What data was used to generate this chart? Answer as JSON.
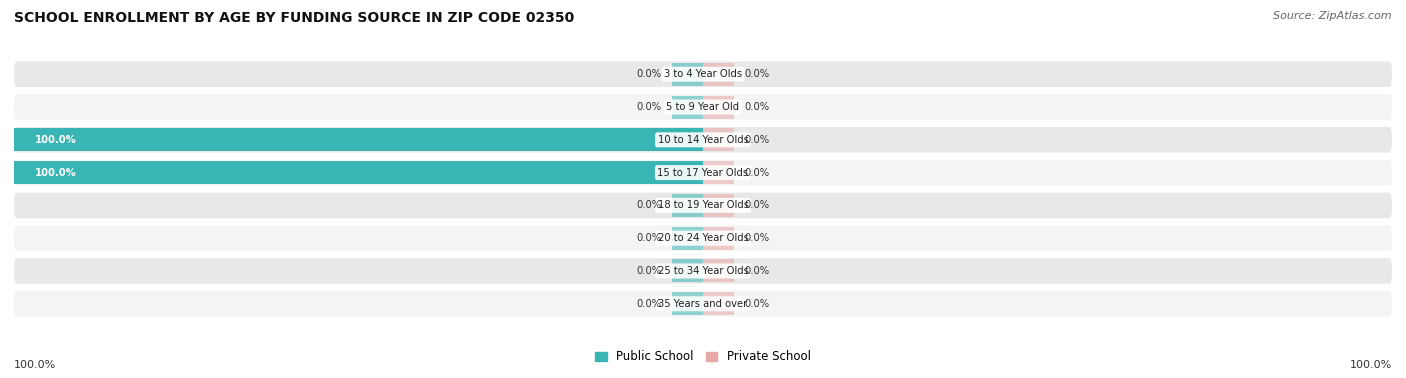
{
  "title": "SCHOOL ENROLLMENT BY AGE BY FUNDING SOURCE IN ZIP CODE 02350",
  "source": "Source: ZipAtlas.com",
  "categories": [
    "3 to 4 Year Olds",
    "5 to 9 Year Old",
    "10 to 14 Year Olds",
    "15 to 17 Year Olds",
    "18 to 19 Year Olds",
    "20 to 24 Year Olds",
    "25 to 34 Year Olds",
    "35 Years and over"
  ],
  "public_values": [
    0.0,
    0.0,
    100.0,
    100.0,
    0.0,
    0.0,
    0.0,
    0.0
  ],
  "private_values": [
    0.0,
    0.0,
    0.0,
    0.0,
    0.0,
    0.0,
    0.0,
    0.0
  ],
  "public_color": "#3ab5b5",
  "private_color": "#e8a8a8",
  "public_label": "Public School",
  "private_label": "Private School",
  "row_colors": [
    "#e8e8e8",
    "#f4f4f4"
  ],
  "title_fontsize": 10,
  "source_fontsize": 8,
  "axis_label_left": "100.0%",
  "axis_label_right": "100.0%",
  "stub_size": 4.5,
  "xlim_left": -100,
  "xlim_right": 100
}
